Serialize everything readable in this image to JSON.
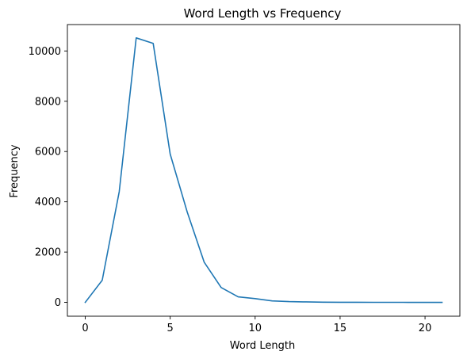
{
  "chart_data": {
    "type": "line",
    "title": "Word Length vs Frequency",
    "xlabel": "Word Length",
    "ylabel": "Frequency",
    "xlim": [
      -1.05,
      22.05
    ],
    "ylim": [
      -550,
      11050
    ],
    "grid": false,
    "x_ticks": [
      0,
      5,
      10,
      15,
      20
    ],
    "y_ticks": [
      0,
      2000,
      4000,
      6000,
      8000,
      10000
    ],
    "series": [
      {
        "color": "#1f77b4",
        "x": [
          0,
          1,
          2,
          3,
          4,
          5,
          6,
          7,
          8,
          9,
          10,
          11,
          12,
          13,
          14,
          15,
          16,
          17,
          18,
          19,
          20,
          21
        ],
        "y": [
          0,
          880,
          4400,
          10520,
          10300,
          5900,
          3600,
          1600,
          590,
          220,
          150,
          60,
          30,
          18,
          8,
          5,
          3,
          2,
          2,
          1,
          1,
          1
        ]
      }
    ]
  }
}
